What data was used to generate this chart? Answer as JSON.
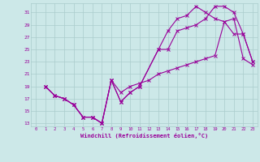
{
  "xlabel": "Windchill (Refroidissement éolien,°C)",
  "xlim": [
    -0.5,
    23.5
  ],
  "ylim": [
    12.5,
    32.5
  ],
  "yticks": [
    13,
    15,
    17,
    19,
    21,
    23,
    25,
    27,
    29,
    31
  ],
  "xticks": [
    0,
    1,
    2,
    3,
    4,
    5,
    6,
    7,
    8,
    9,
    10,
    11,
    12,
    13,
    14,
    15,
    16,
    17,
    18,
    19,
    20,
    21,
    22,
    23
  ],
  "bg_color": "#cce8e8",
  "grid_color": "#aacccc",
  "line_color": "#990099",
  "series1_x": [
    1,
    2,
    3,
    4,
    5,
    6,
    7,
    8,
    9,
    10,
    11,
    13,
    14,
    15,
    16,
    17,
    18,
    19,
    20,
    21,
    22,
    23
  ],
  "series1_y": [
    19,
    17.5,
    17,
    16,
    14,
    14,
    13,
    20,
    16.5,
    18,
    19,
    25,
    25,
    28,
    28.5,
    29,
    30,
    32,
    32,
    31,
    27.5,
    23
  ],
  "series2_x": [
    1,
    2,
    3,
    4,
    5,
    6,
    7,
    8,
    9,
    10,
    11,
    12,
    13,
    14,
    15,
    16,
    17,
    18,
    19,
    20,
    21,
    22,
    23
  ],
  "series2_y": [
    19,
    17.5,
    17,
    16,
    14,
    14,
    13,
    20,
    18,
    19,
    19.5,
    20,
    21,
    21.5,
    22,
    22.5,
    23,
    23.5,
    24,
    29.5,
    30,
    23.5,
    22.5
  ],
  "series3_x": [
    1,
    2,
    3,
    4,
    5,
    6,
    7,
    8,
    9,
    10,
    11,
    13,
    14,
    15,
    16,
    17,
    18,
    19,
    20,
    21,
    22,
    23
  ],
  "series3_y": [
    19,
    17.5,
    17,
    16,
    14,
    14,
    13,
    20,
    16.5,
    18,
    19,
    25,
    28,
    30,
    30.5,
    32,
    31,
    30,
    29.5,
    27.5,
    27.5,
    23
  ]
}
